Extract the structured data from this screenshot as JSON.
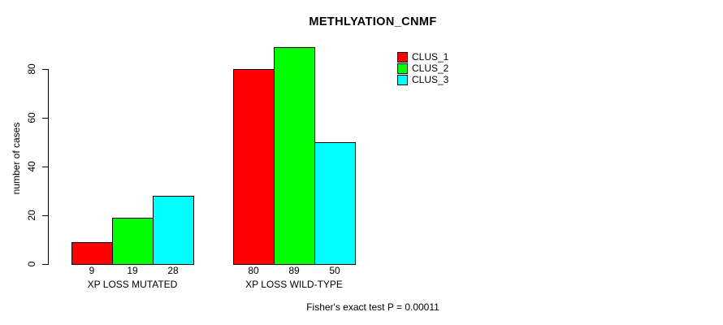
{
  "chart_data": {
    "type": "bar",
    "title": "METHLYATION_CNMF",
    "ylabel": "number of cases",
    "xlabel": "",
    "categories": [
      "XP LOSS MUTATED",
      "XP LOSS WILD-TYPE"
    ],
    "series": [
      {
        "name": "CLUS_1",
        "color": "#ff0000",
        "values": [
          9,
          80
        ]
      },
      {
        "name": "CLUS_2",
        "color": "#00ff00",
        "values": [
          19,
          89
        ]
      },
      {
        "name": "CLUS_3",
        "color": "#00ffff",
        "values": [
          28,
          50
        ]
      }
    ],
    "bar_value_labels": [
      [
        "9",
        "19",
        "28"
      ],
      [
        "80",
        "89",
        "50"
      ]
    ],
    "y_ticks": [
      0,
      20,
      40,
      60,
      80
    ],
    "ylim": [
      0,
      90
    ],
    "grid": false,
    "legend_position": "top-right",
    "legend_box": false,
    "annotation": "Fisher's exact test P = 0.00011"
  }
}
